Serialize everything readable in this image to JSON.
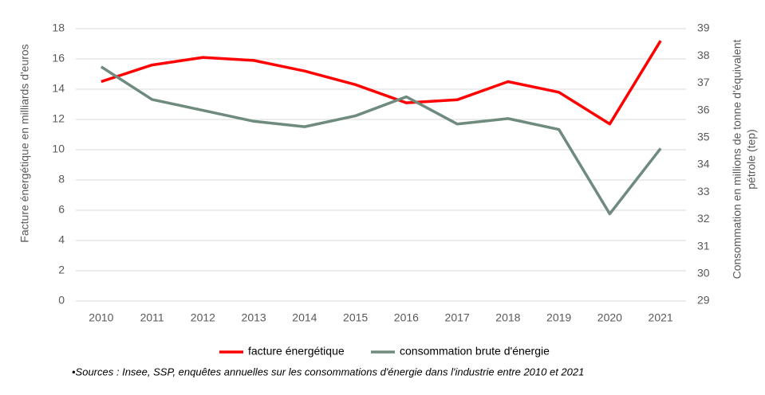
{
  "chart_data": {
    "type": "line",
    "categories": [
      "2010",
      "2011",
      "2012",
      "2013",
      "2014",
      "2015",
      "2016",
      "2017",
      "2018",
      "2019",
      "2020",
      "2021"
    ],
    "series": [
      {
        "name": "facture énergétique",
        "color": "#ff0000",
        "values": [
          14.5,
          15.6,
          16.1,
          15.9,
          15.2,
          14.3,
          13.1,
          13.3,
          14.5,
          13.8,
          11.7,
          17.2
        ]
      },
      {
        "name": "consommation brute d'énergie",
        "color": "#6e8b7e",
        "axis": "y2",
        "values": [
          37.6,
          36.4,
          36.0,
          35.6,
          35.4,
          35.8,
          36.5,
          35.5,
          35.7,
          35.3,
          32.2,
          34.6
        ]
      }
    ],
    "ylabel": "Facture énergétique en milliards d'euros",
    "y2label": [
      "Consommation en millions de  tonne d'équivalent",
      "pétrole (tep)"
    ],
    "ylim": [
      0,
      18
    ],
    "yticks": [
      0,
      2,
      4,
      6,
      8,
      10,
      12,
      14,
      16,
      18
    ],
    "y2lim": [
      29,
      39
    ],
    "y2ticks": [
      29,
      30,
      31,
      32,
      33,
      34,
      35,
      36,
      37,
      38,
      39
    ],
    "grid": true,
    "legend": "bottom",
    "note": "•Sources : Insee, SSP, enquêtes annuelles sur les consommations d'énergie dans l'industrie entre 2010 et 2021"
  }
}
